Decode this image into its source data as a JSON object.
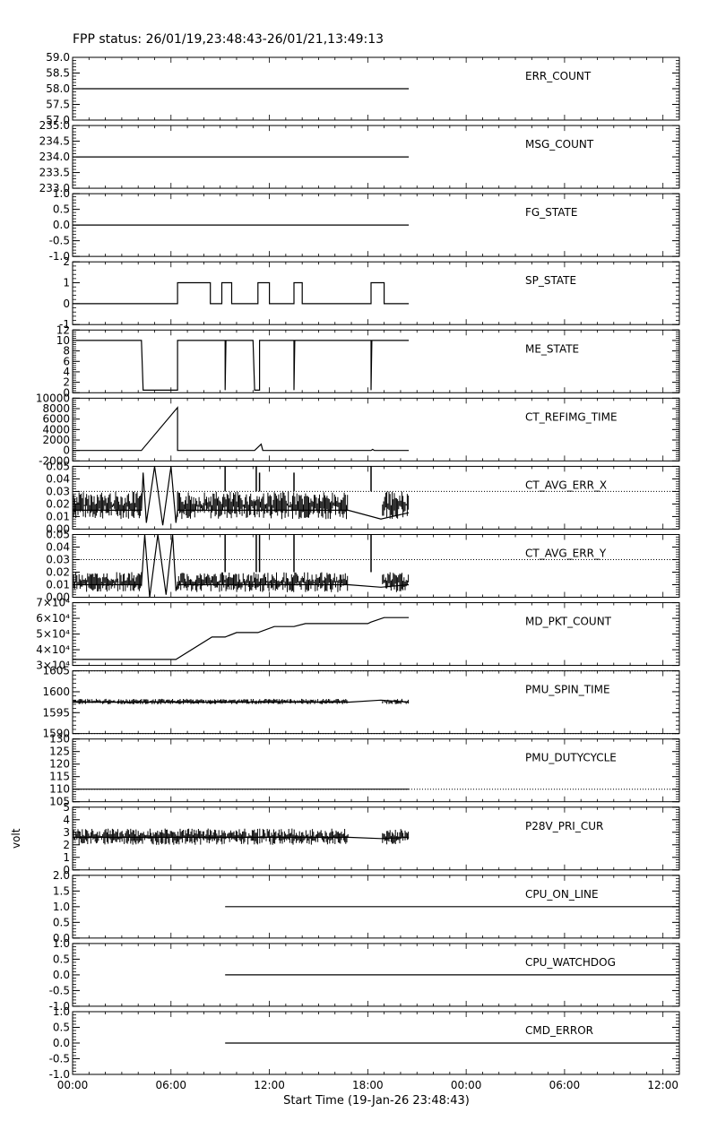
{
  "chart_data": {
    "type": "line",
    "title": "FPP status: 26/01/19,23:48:43-26/01/21,13:49:13",
    "xlabel": "Start Time (19-Jan-26 23:48:43)",
    "x_ticks": [
      "00:00",
      "06:00",
      "12:00",
      "18:00",
      "00:00",
      "06:00",
      "12:00"
    ],
    "x_range_hours": [
      0,
      37
    ],
    "panels": [
      {
        "name": "ERR_COUNT",
        "ylabel": "",
        "ylim": [
          57.0,
          59.0
        ],
        "ytick_labels": [
          "57.0",
          "57.5",
          "58.0",
          "58.5",
          "59.0"
        ],
        "points": [
          [
            0,
            58
          ],
          [
            20.5,
            58
          ]
        ]
      },
      {
        "name": "MSG_COUNT",
        "ylabel": "",
        "ylim": [
          233.0,
          235.0
        ],
        "ytick_labels": [
          "233.0",
          "233.5",
          "234.0",
          "234.5",
          "235.0"
        ],
        "points": [
          [
            0,
            234
          ],
          [
            20.5,
            234
          ]
        ]
      },
      {
        "name": "FG_STATE",
        "ylabel": "",
        "ylim": [
          -1.0,
          1.0
        ],
        "ytick_labels": [
          "-1.0",
          "-0.5",
          "0.0",
          "0.5",
          "1.0"
        ],
        "points": [
          [
            0,
            0
          ],
          [
            20.5,
            0
          ]
        ]
      },
      {
        "name": "SP_STATE",
        "ylabel": "",
        "ylim": [
          -1,
          2
        ],
        "ytick_labels": [
          "-1",
          "0",
          "1",
          "2"
        ],
        "points": [
          [
            0,
            0
          ],
          [
            6.4,
            0
          ],
          [
            6.4,
            1
          ],
          [
            8.4,
            1
          ],
          [
            8.4,
            0
          ],
          [
            9.1,
            0
          ],
          [
            9.1,
            1
          ],
          [
            9.7,
            1
          ],
          [
            9.7,
            0
          ],
          [
            11.3,
            0
          ],
          [
            11.3,
            1
          ],
          [
            12.0,
            1
          ],
          [
            12.0,
            0
          ],
          [
            13.5,
            0
          ],
          [
            13.5,
            1
          ],
          [
            14.0,
            1
          ],
          [
            14.0,
            0
          ],
          [
            18.2,
            0
          ],
          [
            18.2,
            1
          ],
          [
            19.0,
            1
          ],
          [
            19.0,
            0
          ],
          [
            20.5,
            0
          ]
        ]
      },
      {
        "name": "ME_STATE",
        "ylabel": "",
        "ylim": [
          0,
          12
        ],
        "ytick_labels": [
          "0",
          "2",
          "4",
          "6",
          "8",
          "10",
          "12"
        ],
        "points": [
          [
            0,
            10
          ],
          [
            4.2,
            10
          ],
          [
            4.3,
            0.5
          ],
          [
            6.4,
            0.5
          ],
          [
            6.4,
            10
          ],
          [
            9.3,
            10
          ],
          [
            9.3,
            0.5
          ],
          [
            9.35,
            10
          ],
          [
            11.0,
            10
          ],
          [
            11.1,
            0.5
          ],
          [
            11.4,
            0.5
          ],
          [
            11.4,
            10
          ],
          [
            13.5,
            10
          ],
          [
            13.5,
            0.5
          ],
          [
            13.55,
            10
          ],
          [
            18.2,
            10
          ],
          [
            18.2,
            0.5
          ],
          [
            18.25,
            10
          ],
          [
            20.5,
            10
          ]
        ]
      },
      {
        "name": "CT_REFIMG_TIME",
        "ylabel": "",
        "ylim": [
          -2000,
          10000
        ],
        "ytick_labels": [
          "-2000",
          "0",
          "2000",
          "4000",
          "6000",
          "8000",
          "10000"
        ],
        "points": [
          [
            0,
            0
          ],
          [
            4.2,
            0
          ],
          [
            6.4,
            8200
          ],
          [
            6.4,
            0
          ],
          [
            11.1,
            0
          ],
          [
            11.5,
            1200
          ],
          [
            11.6,
            0
          ],
          [
            18.2,
            0
          ],
          [
            18.3,
            200
          ],
          [
            18.4,
            0
          ],
          [
            20.5,
            0
          ]
        ]
      },
      {
        "name": "CT_AVG_ERR_X",
        "ylabel": "",
        "ylim": [
          0.0,
          0.05
        ],
        "ytick_labels": [
          "0.00",
          "0.01",
          "0.02",
          "0.03",
          "0.04",
          "0.05"
        ],
        "ref_line": 0.03,
        "points": [
          [
            0,
            0.015
          ],
          [
            4.2,
            0.015
          ],
          [
            4.3,
            0.045
          ],
          [
            4.5,
            0.005
          ],
          [
            5.0,
            0.05
          ],
          [
            5.5,
            0.003
          ],
          [
            6.0,
            0.05
          ],
          [
            6.3,
            0.005
          ],
          [
            6.4,
            0.015
          ],
          [
            16.8,
            0.015
          ],
          [
            18.8,
            0.008
          ],
          [
            20.5,
            0.013
          ]
        ],
        "noise": {
          "ranges": [
            [
              0,
              4.2
            ],
            [
              6.4,
              16.8
            ],
            [
              18.9,
              20.5
            ]
          ],
          "min": 0.008,
          "max": 0.03
        },
        "spikes": [
          [
            9.3,
            0.05
          ],
          [
            11.2,
            0.05
          ],
          [
            11.4,
            0.045
          ],
          [
            13.5,
            0.045
          ],
          [
            18.2,
            0.05
          ]
        ]
      },
      {
        "name": "CT_AVG_ERR_Y",
        "ylabel": "",
        "ylim": [
          0.0,
          0.05
        ],
        "ytick_labels": [
          "0.00",
          "0.01",
          "0.02",
          "0.03",
          "0.04",
          "0.05"
        ],
        "ref_line": 0.03,
        "points": [
          [
            0,
            0.01
          ],
          [
            4.2,
            0.01
          ],
          [
            4.4,
            0.05
          ],
          [
            4.7,
            0.0
          ],
          [
            5.2,
            0.05
          ],
          [
            5.7,
            0.002
          ],
          [
            6.1,
            0.05
          ],
          [
            6.3,
            0.005
          ],
          [
            6.4,
            0.01
          ],
          [
            16.8,
            0.01
          ],
          [
            18.8,
            0.008
          ],
          [
            20.5,
            0.01
          ]
        ],
        "noise": {
          "ranges": [
            [
              0,
              4.2
            ],
            [
              6.4,
              16.8
            ],
            [
              18.9,
              20.5
            ]
          ],
          "min": 0.004,
          "max": 0.02
        },
        "spikes": [
          [
            9.3,
            0.05
          ],
          [
            11.2,
            0.05
          ],
          [
            11.4,
            0.05
          ],
          [
            13.5,
            0.05
          ],
          [
            18.2,
            0.05
          ]
        ]
      },
      {
        "name": "MD_PKT_COUNT",
        "ylabel": "",
        "ylim": [
          28000,
          70000
        ],
        "ytick_labels": [
          "3×10⁴",
          "4×10⁴",
          "5×10⁴",
          "6×10⁴",
          "7×10⁴"
        ],
        "points": [
          [
            0,
            32000
          ],
          [
            6.3,
            32000
          ],
          [
            8.5,
            47000
          ],
          [
            9.3,
            47000
          ],
          [
            10.0,
            50000
          ],
          [
            11.3,
            50000
          ],
          [
            12.3,
            54000
          ],
          [
            13.5,
            54000
          ],
          [
            14.2,
            56000
          ],
          [
            18.0,
            56000
          ],
          [
            18.2,
            57000
          ],
          [
            19.0,
            60000
          ],
          [
            20.5,
            60000
          ]
        ]
      },
      {
        "name": "PMU_SPIN_TIME",
        "ylabel": "",
        "ylim": [
          1590,
          1605
        ],
        "ytick_labels": [
          "1590",
          "1595",
          "1600",
          "1605"
        ],
        "ref_line": 1605,
        "ref_line2": 1590,
        "points": [
          [
            0,
            1597.5
          ],
          [
            16.8,
            1597.5
          ],
          [
            18.8,
            1598
          ],
          [
            20.5,
            1597.5
          ]
        ],
        "noise": {
          "ranges": [
            [
              0,
              16.8
            ],
            [
              18.9,
              20.5
            ]
          ],
          "min": 1597,
          "max": 1598.3
        }
      },
      {
        "name": "PMU_DUTYCYCLE",
        "ylabel": "",
        "ylim": [
          105,
          130
        ],
        "ytick_labels": [
          "105",
          "110",
          "115",
          "120",
          "125",
          "130"
        ],
        "ref_line": 110,
        "points": [
          [
            0,
            110
          ],
          [
            20.5,
            110
          ]
        ]
      },
      {
        "name": "P28V_PRI_CUR",
        "ylabel": "volt",
        "ylim": [
          0,
          5
        ],
        "ytick_labels": [
          "0",
          "1",
          "2",
          "3",
          "4",
          "5"
        ],
        "points": [
          [
            0,
            2.6
          ],
          [
            16.8,
            2.6
          ],
          [
            18.8,
            2.5
          ],
          [
            20.5,
            2.6
          ]
        ],
        "noise": {
          "ranges": [
            [
              0,
              16.8
            ],
            [
              18.9,
              20.5
            ]
          ],
          "min": 2.0,
          "max": 3.3
        }
      },
      {
        "name": "CPU_ON_LINE",
        "ylabel": "",
        "ylim": [
          0.0,
          2.0
        ],
        "ytick_labels": [
          "0.0",
          "0.5",
          "1.0",
          "1.5",
          "2.0"
        ],
        "points": [
          [
            9.3,
            1
          ],
          [
            37,
            1
          ]
        ]
      },
      {
        "name": "CPU_WATCHDOG",
        "ylabel": "",
        "ylim": [
          -1.0,
          1.0
        ],
        "ytick_labels": [
          "-1.0",
          "-0.5",
          "0.0",
          "0.5",
          "1.0"
        ],
        "points": [
          [
            9.3,
            0
          ],
          [
            37,
            0
          ]
        ]
      },
      {
        "name": "CMD_ERROR",
        "ylabel": "",
        "ylim": [
          -1.0,
          1.0
        ],
        "ytick_labels": [
          "-1.0",
          "-0.5",
          "0.0",
          "0.5",
          "1.0"
        ],
        "points": [
          [
            9.3,
            0
          ],
          [
            37,
            0
          ]
        ]
      }
    ]
  }
}
